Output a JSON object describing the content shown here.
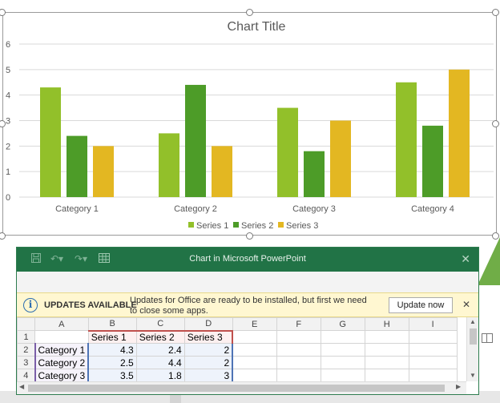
{
  "chart_data": {
    "type": "bar",
    "title": "Chart Title",
    "categories": [
      "Category 1",
      "Category 2",
      "Category 3",
      "Category 4"
    ],
    "series": [
      {
        "name": "Series 1",
        "values": [
          4.3,
          2.5,
          3.5,
          4.5
        ],
        "color": "#92c02a"
      },
      {
        "name": "Series 2",
        "values": [
          2.4,
          4.4,
          1.8,
          2.8
        ],
        "color": "#4d9c28"
      },
      {
        "name": "Series 3",
        "values": [
          2,
          2,
          3,
          5
        ],
        "color": "#e3b722"
      }
    ],
    "ylim": [
      0,
      6
    ],
    "yticks": [
      "0",
      "1",
      "2",
      "3",
      "4",
      "5",
      "6"
    ],
    "grid": true,
    "legend_position": "bottom"
  },
  "sheet_window": {
    "title": "Chart in Microsoft PowerPoint",
    "close_glyph": "✕"
  },
  "message_bar": {
    "title": "UPDATES AVAILABLE",
    "text": "Updates for Office are ready to be installed, but first we need to close some apps.",
    "button_label": "Update now",
    "close_glyph": "✕"
  },
  "spreadsheet": {
    "columns": [
      "A",
      "B",
      "C",
      "D",
      "E",
      "F",
      "G",
      "H",
      "I"
    ],
    "rows": [
      {
        "num": "1",
        "cells": [
          "",
          "Series 1",
          "Series 2",
          "Series 3",
          "",
          "",
          "",
          "",
          ""
        ]
      },
      {
        "num": "2",
        "cells": [
          "Category 1",
          "4.3",
          "2.4",
          "2",
          "",
          "",
          "",
          "",
          ""
        ]
      },
      {
        "num": "3",
        "cells": [
          "Category 2",
          "2.5",
          "4.4",
          "2",
          "",
          "",
          "",
          "",
          ""
        ]
      },
      {
        "num": "4",
        "cells": [
          "Category 3",
          "3.5",
          "1.8",
          "3",
          "",
          "",
          "",
          "",
          ""
        ]
      }
    ]
  },
  "colors": {
    "titlebar": "#217346",
    "message_bar": "#fff7d1",
    "accent": "#70ad47"
  }
}
